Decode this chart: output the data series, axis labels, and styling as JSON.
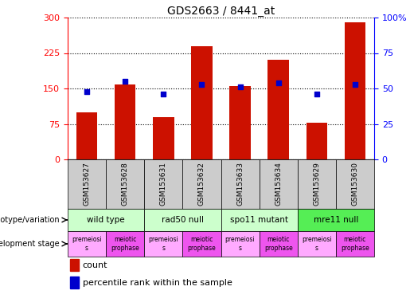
{
  "title": "GDS2663 / 8441_at",
  "samples": [
    "GSM153627",
    "GSM153628",
    "GSM153631",
    "GSM153632",
    "GSM153633",
    "GSM153634",
    "GSM153629",
    "GSM153630"
  ],
  "counts": [
    100,
    158,
    90,
    240,
    155,
    210,
    78,
    290
  ],
  "percentile_ranks": [
    48,
    55,
    46,
    53,
    51,
    54,
    46,
    53
  ],
  "ylim_left": [
    0,
    300
  ],
  "ylim_right": [
    0,
    100
  ],
  "yticks_left": [
    0,
    75,
    150,
    225,
    300
  ],
  "yticks_right": [
    0,
    25,
    50,
    75,
    100
  ],
  "bar_color": "#cc1100",
  "dot_color": "#0000cc",
  "genotype_groups": [
    {
      "label": "wild type",
      "start": 0,
      "end": 2,
      "color": "#ccffcc"
    },
    {
      "label": "rad50 null",
      "start": 2,
      "end": 4,
      "color": "#ccffcc"
    },
    {
      "label": "spo11 mutant",
      "start": 4,
      "end": 6,
      "color": "#ccffcc"
    },
    {
      "label": "mre11 null",
      "start": 6,
      "end": 8,
      "color": "#55ee55"
    }
  ],
  "dev_stage_labels": [
    "premeiosi\ns",
    "meiotic\nprophase",
    "premeiosi\ns",
    "meiotic\nprophase",
    "premeiosi\ns",
    "meiotic\nprophase",
    "premeiosi\ns",
    "meiotic\nprophase"
  ],
  "left_label_genotype": "genotype/variation",
  "left_label_devstage": "development stage",
  "legend_count_color": "#cc1100",
  "legend_dot_color": "#0000cc",
  "sample_bg_color": "#cccccc",
  "dev_colors": [
    "#ffaaff",
    "#ee55ee",
    "#ffaaff",
    "#ee55ee",
    "#ffaaff",
    "#ee55ee",
    "#ffaaff",
    "#ee55ee"
  ]
}
